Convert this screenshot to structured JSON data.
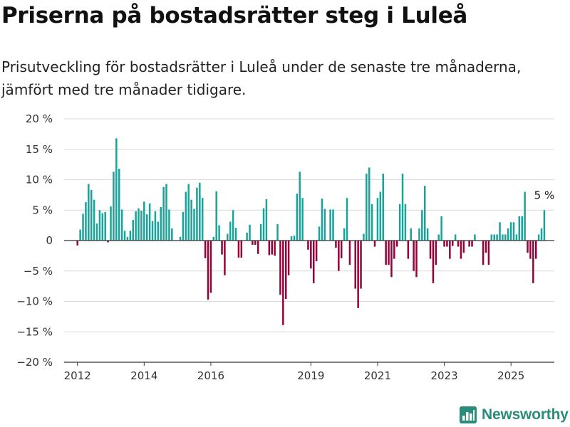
{
  "title": "Priserna på bostadsrätter steg i Luleå",
  "subtitle": "Prisutveckling för bostadsrätter i Luleå under de senaste tre månaderna, jämfört med tre månader tidigare.",
  "brand": "Newsworthy",
  "colors": {
    "positive": "#1aa39a",
    "negative": "#980038",
    "grid": "#d9d9d9",
    "zero_line": "#333333",
    "brand": "#2a8c7a"
  },
  "chart_data": {
    "type": "bar",
    "title": "Priserna på bostadsrätter steg i Luleå",
    "subtitle": "Prisutveckling för bostadsrätter i Luleå under de senaste tre månaderna, jämfört med tre månader tidigare.",
    "x_start": 2012.0,
    "x_step": 0.08333,
    "xlim": [
      2011.6,
      2026.3
    ],
    "ylim": [
      -20,
      20
    ],
    "y_ticks": [
      20,
      15,
      10,
      5,
      0,
      -5,
      -10,
      -15,
      -20
    ],
    "y_tick_labels": [
      "20 %",
      "15 %",
      "10 %",
      "5 %",
      "0",
      "−5 %",
      "−10 %",
      "−15 %",
      "−20 %"
    ],
    "x_ticks": [
      2012,
      2014,
      2016,
      2019,
      2021,
      2023,
      2025
    ],
    "x_tick_labels": [
      "2012",
      "2014",
      "2016",
      "2019",
      "2021",
      "2023",
      "2025"
    ],
    "grid": true,
    "annotation": {
      "text": "5 %",
      "value": 5
    },
    "values": [
      -0.8,
      1.8,
      4.4,
      6.3,
      9.3,
      8.3,
      6.7,
      2.8,
      5.0,
      4.5,
      4.7,
      -0.3,
      5.6,
      11.3,
      16.8,
      11.8,
      5.1,
      1.6,
      0.6,
      1.6,
      3.4,
      4.8,
      5.3,
      4.9,
      6.4,
      4.3,
      6.1,
      3.2,
      4.8,
      3.1,
      5.5,
      8.8,
      9.3,
      5.1,
      2.0,
      0,
      0,
      0.6,
      4.7,
      8.0,
      9.3,
      6.7,
      5.2,
      8.7,
      9.5,
      7.0,
      -2.9,
      -9.7,
      -8.6,
      0.6,
      8.1,
      2.5,
      -2.3,
      -5.7,
      1.1,
      3.1,
      5.0,
      2.1,
      -2.8,
      -2.8,
      0,
      1.3,
      2.6,
      -0.7,
      -0.7,
      -2.2,
      2.7,
      5.3,
      6.8,
      -2.4,
      -2.3,
      -2.5,
      2.7,
      -8.9,
      -13.9,
      -9.6,
      -5.7,
      0.7,
      0.8,
      7.7,
      11.3,
      7.0,
      0,
      -1.5,
      -4.6,
      -7.0,
      -3.4,
      2.3,
      6.9,
      5.2,
      0,
      5.1,
      5.1,
      -1.2,
      -5.0,
      -2.9,
      2.0,
      7.0,
      -4.0,
      0,
      -7.9,
      -11.1,
      -7.9,
      1.1,
      11.0,
      12.0,
      6.0,
      -1.0,
      7.0,
      8.0,
      11.0,
      -4.0,
      -4.0,
      -6.0,
      -3.0,
      -1.0,
      6.0,
      11.0,
      6.0,
      -3.0,
      2.0,
      -5.0,
      -6.0,
      2.0,
      5.0,
      9.0,
      2.0,
      -3.0,
      -7.0,
      -4.0,
      1.0,
      4.0,
      -1.0,
      -1.0,
      -3.0,
      -0.9,
      1.0,
      -1.0,
      -3.0,
      -2.0,
      0,
      -1.0,
      -1.0,
      1.0,
      0,
      0,
      -4.0,
      -2.0,
      -4.0,
      1.0,
      1.0,
      1.0,
      3.0,
      1.0,
      1.0,
      2.0,
      3.0,
      3.0,
      1.0,
      4.0,
      4.0,
      8.0,
      -2.0,
      -3.0,
      -7.0,
      -3.0,
      1.0,
      2.0,
      5.0
    ]
  }
}
